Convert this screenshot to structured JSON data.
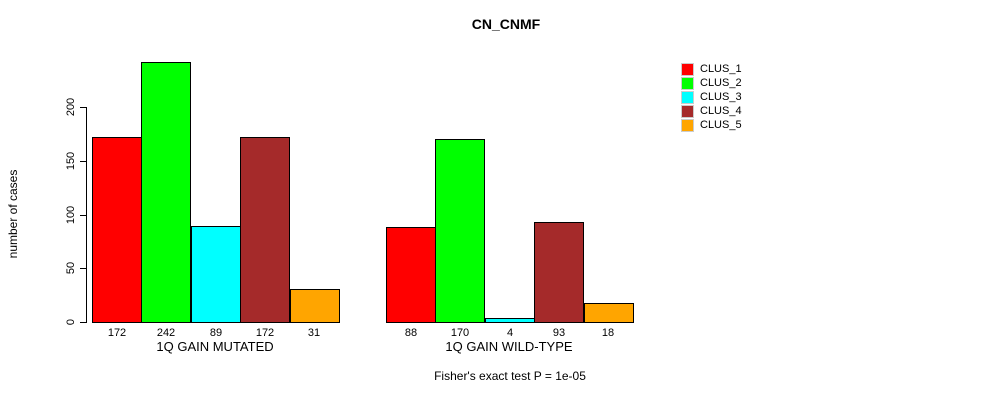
{
  "chart_data": {
    "type": "bar",
    "title": "CN_CNMF",
    "xlabel": "",
    "ylabel": "number of cases",
    "ylim": [
      0,
      250
    ],
    "yticks": [
      0,
      50,
      100,
      150,
      200
    ],
    "grid": false,
    "legend_position": "right",
    "bar_value_labels": true,
    "categories": [
      "1Q GAIN MUTATED",
      "1Q GAIN WILD-TYPE"
    ],
    "series": [
      {
        "name": "CLUS_1",
        "color": "#FF0000",
        "values": [
          172,
          88
        ]
      },
      {
        "name": "CLUS_2",
        "color": "#00FF00",
        "values": [
          242,
          170
        ]
      },
      {
        "name": "CLUS_3",
        "color": "#00FFFF",
        "values": [
          89,
          4
        ]
      },
      {
        "name": "CLUS_4",
        "color": "#A52A2A",
        "values": [
          172,
          93
        ]
      },
      {
        "name": "CLUS_5",
        "color": "#FFA500",
        "values": [
          31,
          18
        ]
      }
    ],
    "annotation": "Fisher's exact test P = 1e-05"
  }
}
